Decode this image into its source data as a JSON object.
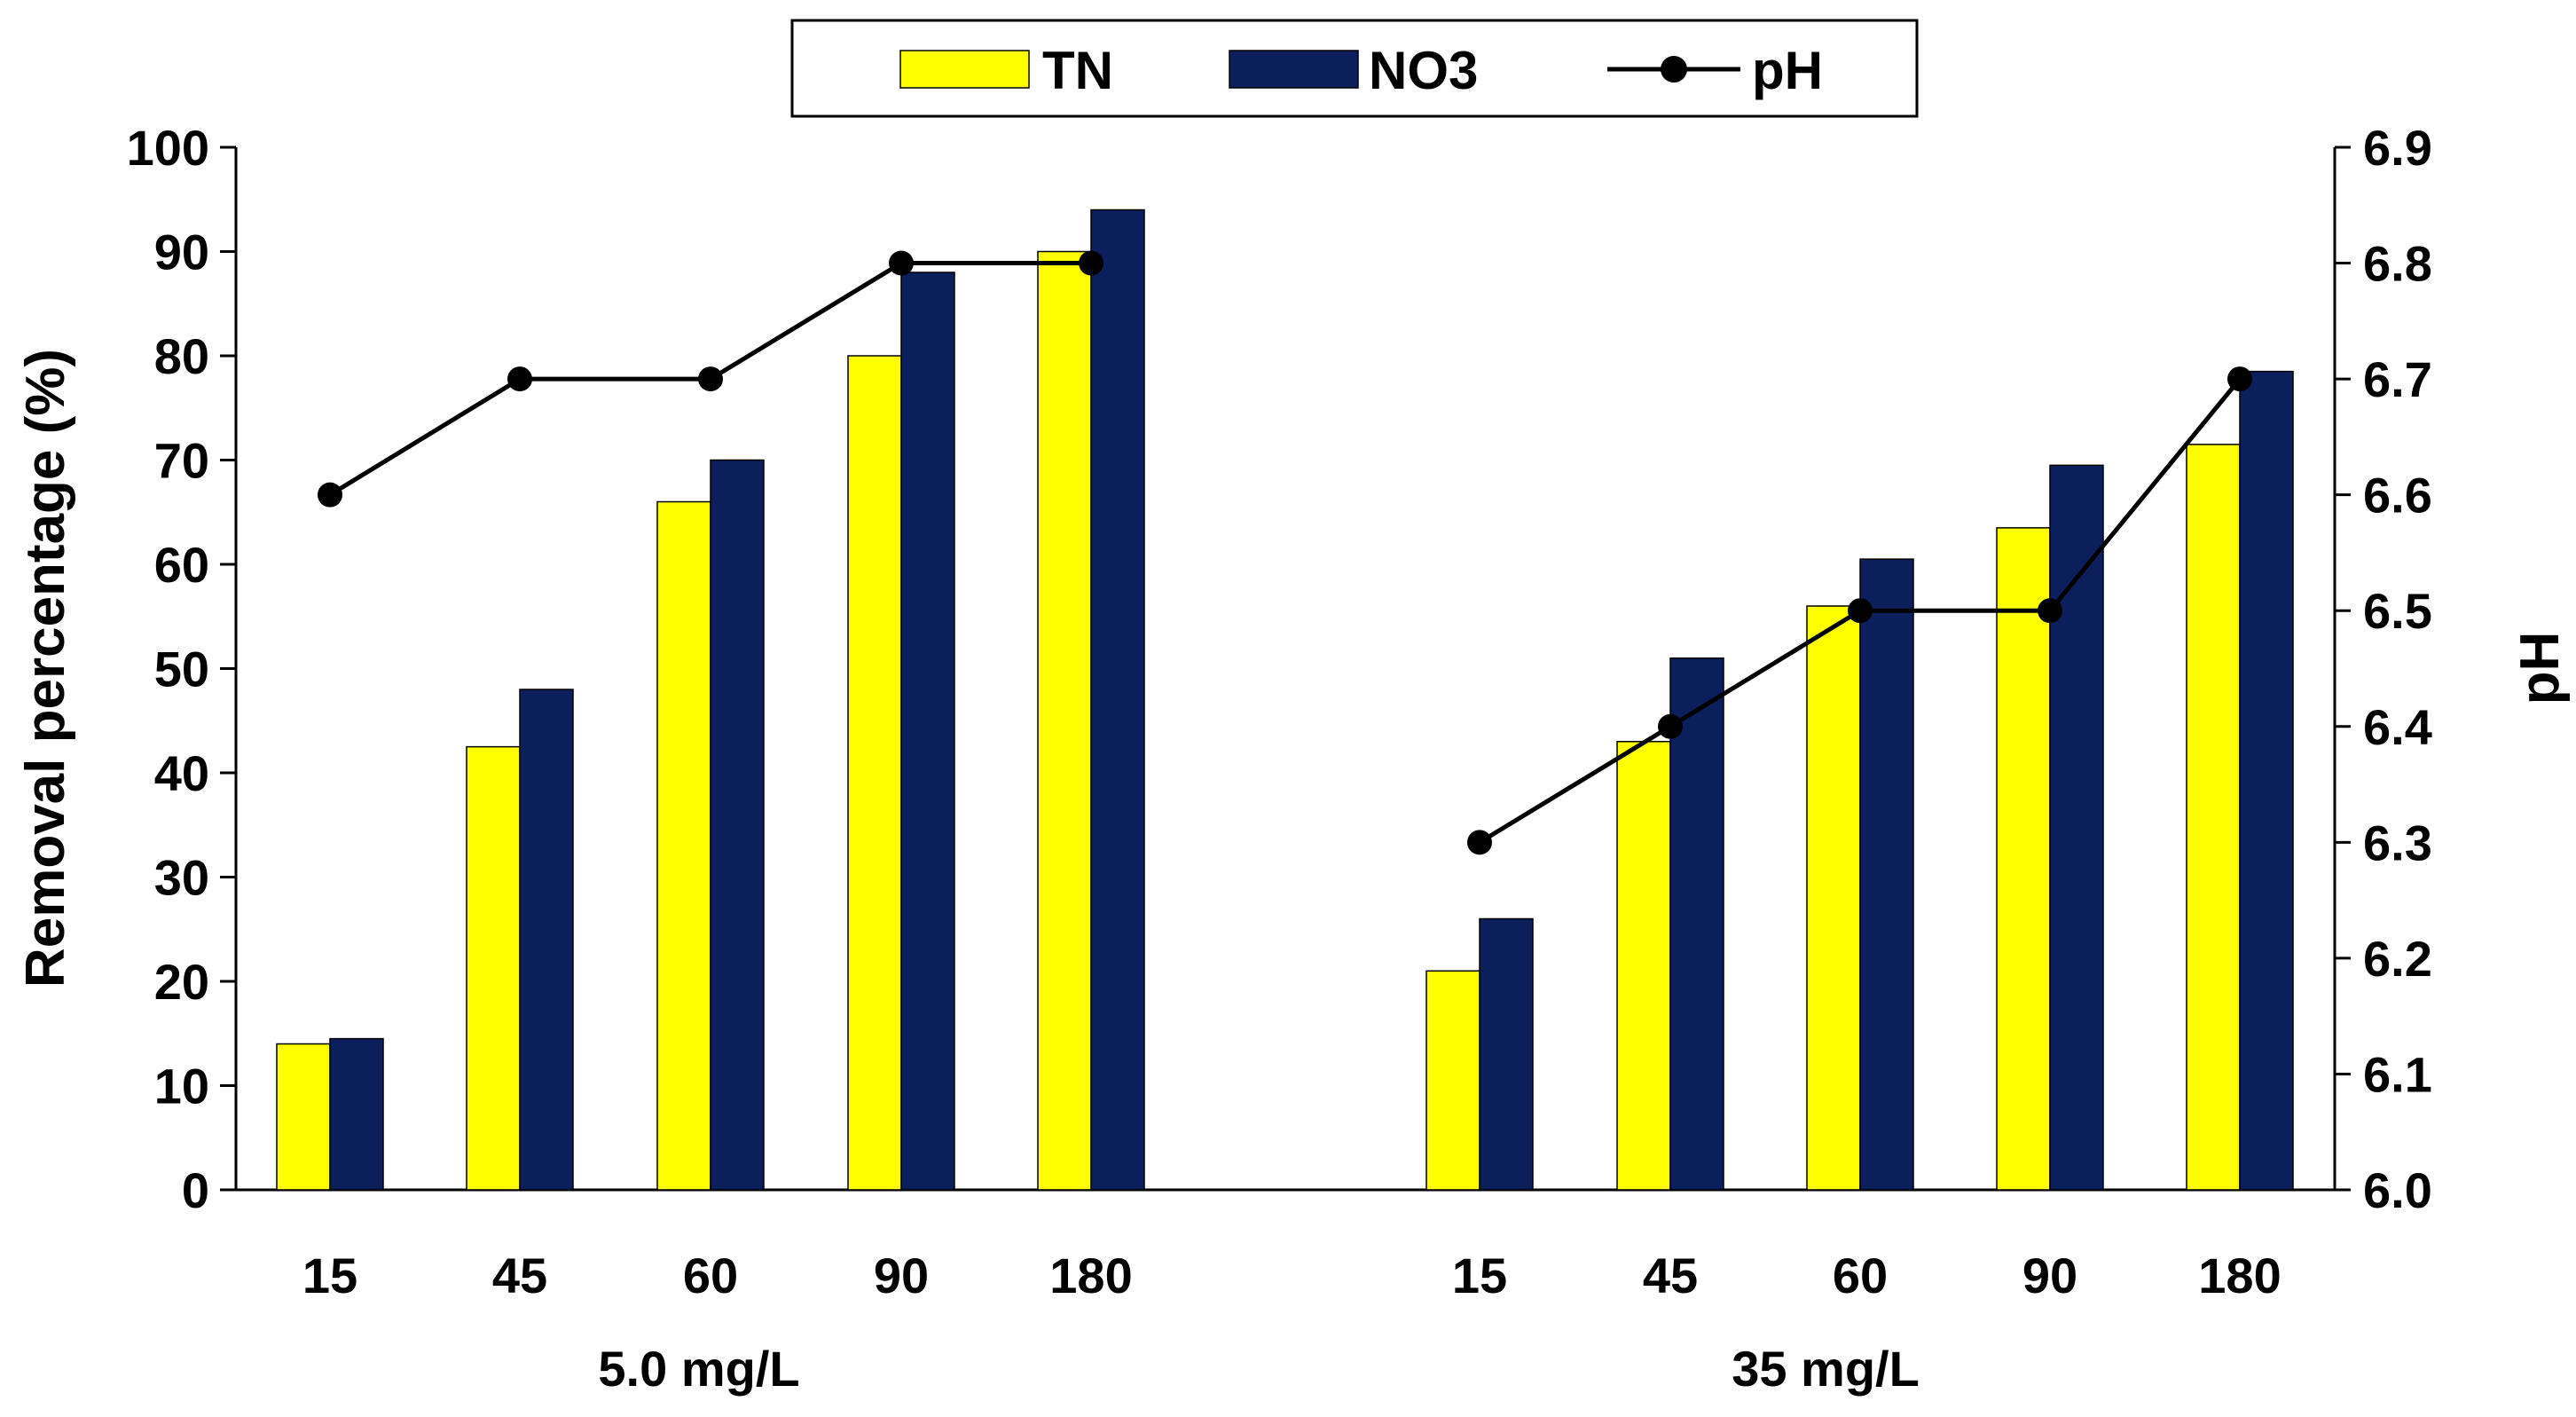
{
  "chart_data": {
    "type": "bar",
    "title": "",
    "ylabel": "Removal percentage (%)",
    "y2label": "pH",
    "ylim": [
      0,
      100
    ],
    "y2lim": [
      6.0,
      6.9
    ],
    "yticks": [
      "0",
      "10",
      "20",
      "30",
      "40",
      "50",
      "60",
      "70",
      "80",
      "90",
      "100"
    ],
    "y2ticks": [
      "6.0",
      "6.1",
      "6.2",
      "6.3",
      "6.4",
      "6.5",
      "6.6",
      "6.7",
      "6.8",
      "6.9"
    ],
    "legend_position": "top-center",
    "grid": false,
    "groups": [
      {
        "label": "5.0 mg/L",
        "categories": [
          "15",
          "45",
          "60",
          "90",
          "180"
        ],
        "tn": [
          14,
          42.5,
          66,
          80,
          90
        ],
        "no3": [
          14.5,
          48,
          70,
          88,
          94
        ],
        "ph": [
          6.6,
          6.7,
          6.7,
          6.8,
          6.8
        ]
      },
      {
        "label": "35 mg/L",
        "categories": [
          "15",
          "45",
          "60",
          "90",
          "180"
        ],
        "tn": [
          21,
          43,
          56,
          63.5,
          71.5
        ],
        "no3": [
          26,
          51,
          60.5,
          69.5,
          78.5
        ],
        "ph": [
          6.3,
          6.4,
          6.5,
          6.5,
          6.7
        ]
      }
    ],
    "series": [
      {
        "name": "TN",
        "kind": "bar",
        "color": "#FFFF00"
      },
      {
        "name": "NO3",
        "kind": "bar",
        "color": "#0A1F5C"
      },
      {
        "name": "pH",
        "kind": "line",
        "color": "#000000"
      }
    ]
  }
}
